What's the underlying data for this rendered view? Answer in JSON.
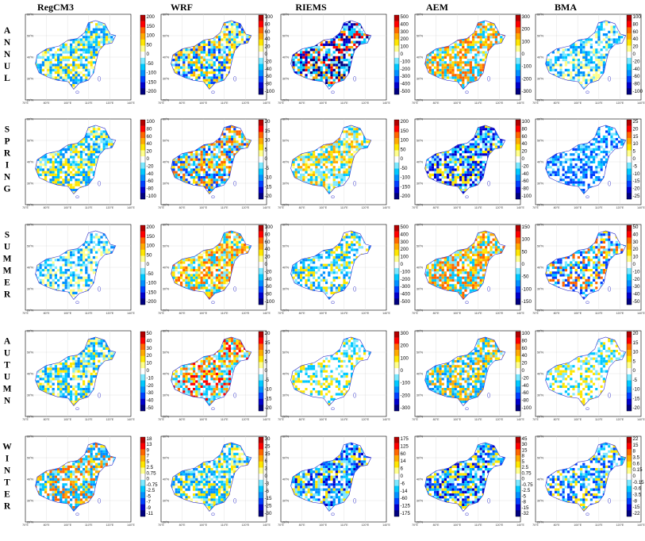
{
  "chart_data": {
    "type": "heatmap",
    "columns": [
      "RegCM3",
      "WRF",
      "RIEMS",
      "AEM",
      "BMA"
    ],
    "rows": [
      "ANNUL",
      "SPRING",
      "SUMMER",
      "AUTUMN",
      "WINTER"
    ],
    "lon_ticks": [
      "70°E",
      "80°E",
      "100°E",
      "110°E",
      "120°E",
      "140°E"
    ],
    "lat_ticks": [
      "20°N",
      "30°N",
      "40°N",
      "50°N",
      "60°N"
    ],
    "colorbar_palette": [
      "#00007f",
      "#0000cc",
      "#0040ff",
      "#0090ff",
      "#00c8ff",
      "#7de8ff",
      "#ffffff",
      "#ffff8c",
      "#ffe600",
      "#ffaa00",
      "#ff6600",
      "#ff0000",
      "#b20000"
    ],
    "panels": [
      [
        {
          "model": "RegCM3",
          "season": "ANNUL",
          "colorbar": [
            "200",
            "150",
            "100",
            "50",
            "0",
            "-50",
            "-100",
            "-150",
            "-200"
          ],
          "pattern": [
            "#7de8ff",
            "#00c8ff",
            "#ffff8c",
            "#0090ff",
            "#ffe600"
          ]
        },
        {
          "model": "WRF",
          "season": "ANNUL",
          "colorbar": [
            "100",
            "80",
            "60",
            "40",
            "20",
            "0",
            "-20",
            "-40",
            "-60",
            "-80",
            "-100"
          ],
          "pattern": [
            "#ffff8c",
            "#7de8ff",
            "#ffaa00",
            "#00c8ff",
            "#0040ff",
            "#ffe600"
          ]
        },
        {
          "model": "RIEMS",
          "season": "ANNUL",
          "colorbar": [
            "500",
            "400",
            "300",
            "200",
            "100",
            "0",
            "-100",
            "-200",
            "-300",
            "-400",
            "-500"
          ],
          "pattern": [
            "#7de8ff",
            "#0000cc",
            "#ff0000",
            "#00007f",
            "#ffaa00",
            "#00c8ff"
          ]
        },
        {
          "model": "AEM",
          "season": "ANNUL",
          "colorbar": [
            "300",
            "200",
            "100",
            "0",
            "-100",
            "-200",
            "-300"
          ],
          "pattern": [
            "#7de8ff",
            "#ffe600",
            "#ffaa00",
            "#00c8ff",
            "#ff6600"
          ]
        },
        {
          "model": "BMA",
          "season": "ANNUL",
          "colorbar": [
            "100",
            "80",
            "60",
            "40",
            "20",
            "0",
            "-20",
            "-40",
            "-60",
            "-80",
            "-100"
          ],
          "pattern": [
            "#7de8ff",
            "#00c8ff",
            "#ffffff",
            "#ffff8c",
            "#0090ff"
          ]
        }
      ],
      [
        {
          "model": "RegCM3",
          "season": "SPRING",
          "colorbar": [
            "100",
            "80",
            "60",
            "40",
            "20",
            "0",
            "-20",
            "-40",
            "-60",
            "-80",
            "-100"
          ],
          "pattern": [
            "#7de8ff",
            "#ffff8c",
            "#00c8ff",
            "#ffe600",
            "#0090ff"
          ]
        },
        {
          "model": "WRF",
          "season": "SPRING",
          "colorbar": [
            "20",
            "15",
            "10",
            "5",
            "0",
            "-5",
            "-10",
            "-15",
            "-20"
          ],
          "pattern": [
            "#ffe600",
            "#ffaa00",
            "#7de8ff",
            "#00c8ff",
            "#0040ff",
            "#ff6600"
          ]
        },
        {
          "model": "RIEMS",
          "season": "SPRING",
          "colorbar": [
            "200",
            "150",
            "100",
            "50",
            "0",
            "-50",
            "-100",
            "-150",
            "-200"
          ],
          "pattern": [
            "#ffe600",
            "#ffaa00",
            "#ffff8c",
            "#7de8ff",
            "#00c8ff"
          ]
        },
        {
          "model": "AEM",
          "season": "SPRING",
          "colorbar": [
            "100",
            "80",
            "60",
            "40",
            "20",
            "0",
            "-20",
            "-40",
            "-60",
            "-80",
            "-100"
          ],
          "pattern": [
            "#7de8ff",
            "#00c8ff",
            "#0040ff",
            "#ffe600",
            "#0000cc"
          ]
        },
        {
          "model": "BMA",
          "season": "SPRING",
          "colorbar": [
            "25",
            "20",
            "15",
            "10",
            "5",
            "0",
            "-5",
            "-10",
            "-15",
            "-20",
            "-25"
          ],
          "pattern": [
            "#7de8ff",
            "#00c8ff",
            "#0090ff",
            "#0040ff",
            "#ffffff"
          ]
        }
      ],
      [
        {
          "model": "RegCM3",
          "season": "SUMMER",
          "colorbar": [
            "200",
            "150",
            "100",
            "50",
            "0",
            "-50",
            "-100",
            "-150",
            "-200"
          ],
          "pattern": [
            "#7de8ff",
            "#00c8ff",
            "#ffffff",
            "#ffff8c",
            "#0090ff"
          ]
        },
        {
          "model": "WRF",
          "season": "SUMMER",
          "colorbar": [
            "100",
            "80",
            "60",
            "40",
            "20",
            "0",
            "-20",
            "-40",
            "-60",
            "-80",
            "-100"
          ],
          "pattern": [
            "#ffff8c",
            "#7de8ff",
            "#ffaa00",
            "#00c8ff",
            "#ffe600",
            "#ff6600"
          ]
        },
        {
          "model": "RIEMS",
          "season": "SUMMER",
          "colorbar": [
            "500",
            "400",
            "300",
            "200",
            "100",
            "0",
            "-100",
            "-200",
            "-300",
            "-400",
            "-500"
          ],
          "pattern": [
            "#7de8ff",
            "#00c8ff",
            "#ffe600",
            "#0090ff",
            "#ffffff"
          ]
        },
        {
          "model": "AEM",
          "season": "SUMMER",
          "colorbar": [
            "150",
            "100",
            "50",
            "0",
            "-50",
            "-100",
            "-150"
          ],
          "pattern": [
            "#7de8ff",
            "#ffe600",
            "#ffaa00",
            "#ff6600",
            "#00c8ff"
          ]
        },
        {
          "model": "BMA",
          "season": "SUMMER",
          "colorbar": [
            "50",
            "40",
            "30",
            "20",
            "10",
            "0",
            "-10",
            "-20",
            "-30",
            "-40",
            "-50"
          ],
          "pattern": [
            "#7de8ff",
            "#00c8ff",
            "#ffe600",
            "#0040ff",
            "#ff6600",
            "#ffffff"
          ]
        }
      ],
      [
        {
          "model": "RegCM3",
          "season": "AUTUMN",
          "colorbar": [
            "50",
            "40",
            "30",
            "20",
            "10",
            "0",
            "-10",
            "-20",
            "-30",
            "-40",
            "-50"
          ],
          "pattern": [
            "#7de8ff",
            "#ffff8c",
            "#00c8ff",
            "#ffe600",
            "#0090ff"
          ]
        },
        {
          "model": "WRF",
          "season": "AUTUMN",
          "colorbar": [
            "20",
            "15",
            "10",
            "5",
            "0",
            "-5",
            "-10",
            "-15",
            "-20"
          ],
          "pattern": [
            "#ffaa00",
            "#ffe600",
            "#ff6600",
            "#7de8ff",
            "#00c8ff",
            "#ff0000"
          ]
        },
        {
          "model": "RIEMS",
          "season": "AUTUMN",
          "colorbar": [
            "300",
            "200",
            "100",
            "0",
            "-100",
            "-200",
            "-300"
          ],
          "pattern": [
            "#ffffff",
            "#7de8ff",
            "#00c8ff",
            "#ffe600",
            "#ffffff"
          ]
        },
        {
          "model": "AEM",
          "season": "AUTUMN",
          "colorbar": [
            "100",
            "80",
            "60",
            "40",
            "20",
            "0",
            "-20",
            "-40",
            "-60",
            "-80",
            "-100"
          ],
          "pattern": [
            "#7de8ff",
            "#ffe600",
            "#00c8ff",
            "#ffaa00",
            "#0090ff"
          ]
        },
        {
          "model": "BMA",
          "season": "AUTUMN",
          "colorbar": [
            "20",
            "15",
            "10",
            "5",
            "0",
            "-5",
            "-10",
            "-15",
            "-20"
          ],
          "pattern": [
            "#ffffff",
            "#7de8ff",
            "#00c8ff",
            "#ffe600",
            "#ffffff"
          ]
        }
      ],
      [
        {
          "model": "RegCM3",
          "season": "WINTER",
          "colorbar": [
            "18",
            "13",
            "9",
            "7",
            "5",
            "2.5",
            "0.75",
            "0",
            "-0.75",
            "-2.5",
            "-5",
            "-7",
            "-9",
            "-11"
          ],
          "pattern": [
            "#ffe600",
            "#ffaa00",
            "#7de8ff",
            "#00c8ff",
            "#ff6600",
            "#0090ff"
          ]
        },
        {
          "model": "WRF",
          "season": "WINTER",
          "colorbar": [
            "30",
            "25",
            "15",
            "6",
            "3",
            "0",
            "-3",
            "-6",
            "-15",
            "-25",
            "-30"
          ],
          "pattern": [
            "#7de8ff",
            "#ffff8c",
            "#00c8ff",
            "#ffe600",
            "#0090ff"
          ]
        },
        {
          "model": "RIEMS",
          "season": "WINTER",
          "colorbar": [
            "175",
            "125",
            "60",
            "14",
            "6",
            "0",
            "-6",
            "-14",
            "-60",
            "-125",
            "-175"
          ],
          "pattern": [
            "#0040ff",
            "#00c8ff",
            "#0000cc",
            "#7de8ff",
            "#0090ff",
            "#ffe600"
          ]
        },
        {
          "model": "AEM",
          "season": "WINTER",
          "colorbar": [
            "45",
            "30",
            "15",
            "8",
            "5",
            "2.5",
            "0.75",
            "0",
            "-0.75",
            "-2.5",
            "-5",
            "-8",
            "-15",
            "-32"
          ],
          "pattern": [
            "#0040ff",
            "#00c8ff",
            "#7de8ff",
            "#0000cc",
            "#ffe600",
            "#0090ff"
          ]
        },
        {
          "model": "BMA",
          "season": "WINTER",
          "colorbar": [
            "22",
            "15",
            "8",
            "3.5",
            "0.6",
            "0.15",
            "0",
            "-0.15",
            "-0.6",
            "-3.5",
            "-8",
            "-15",
            "-22"
          ],
          "pattern": [
            "#7de8ff",
            "#00c8ff",
            "#0090ff",
            "#ffe600",
            "#0040ff",
            "#ffffff"
          ]
        }
      ]
    ]
  }
}
